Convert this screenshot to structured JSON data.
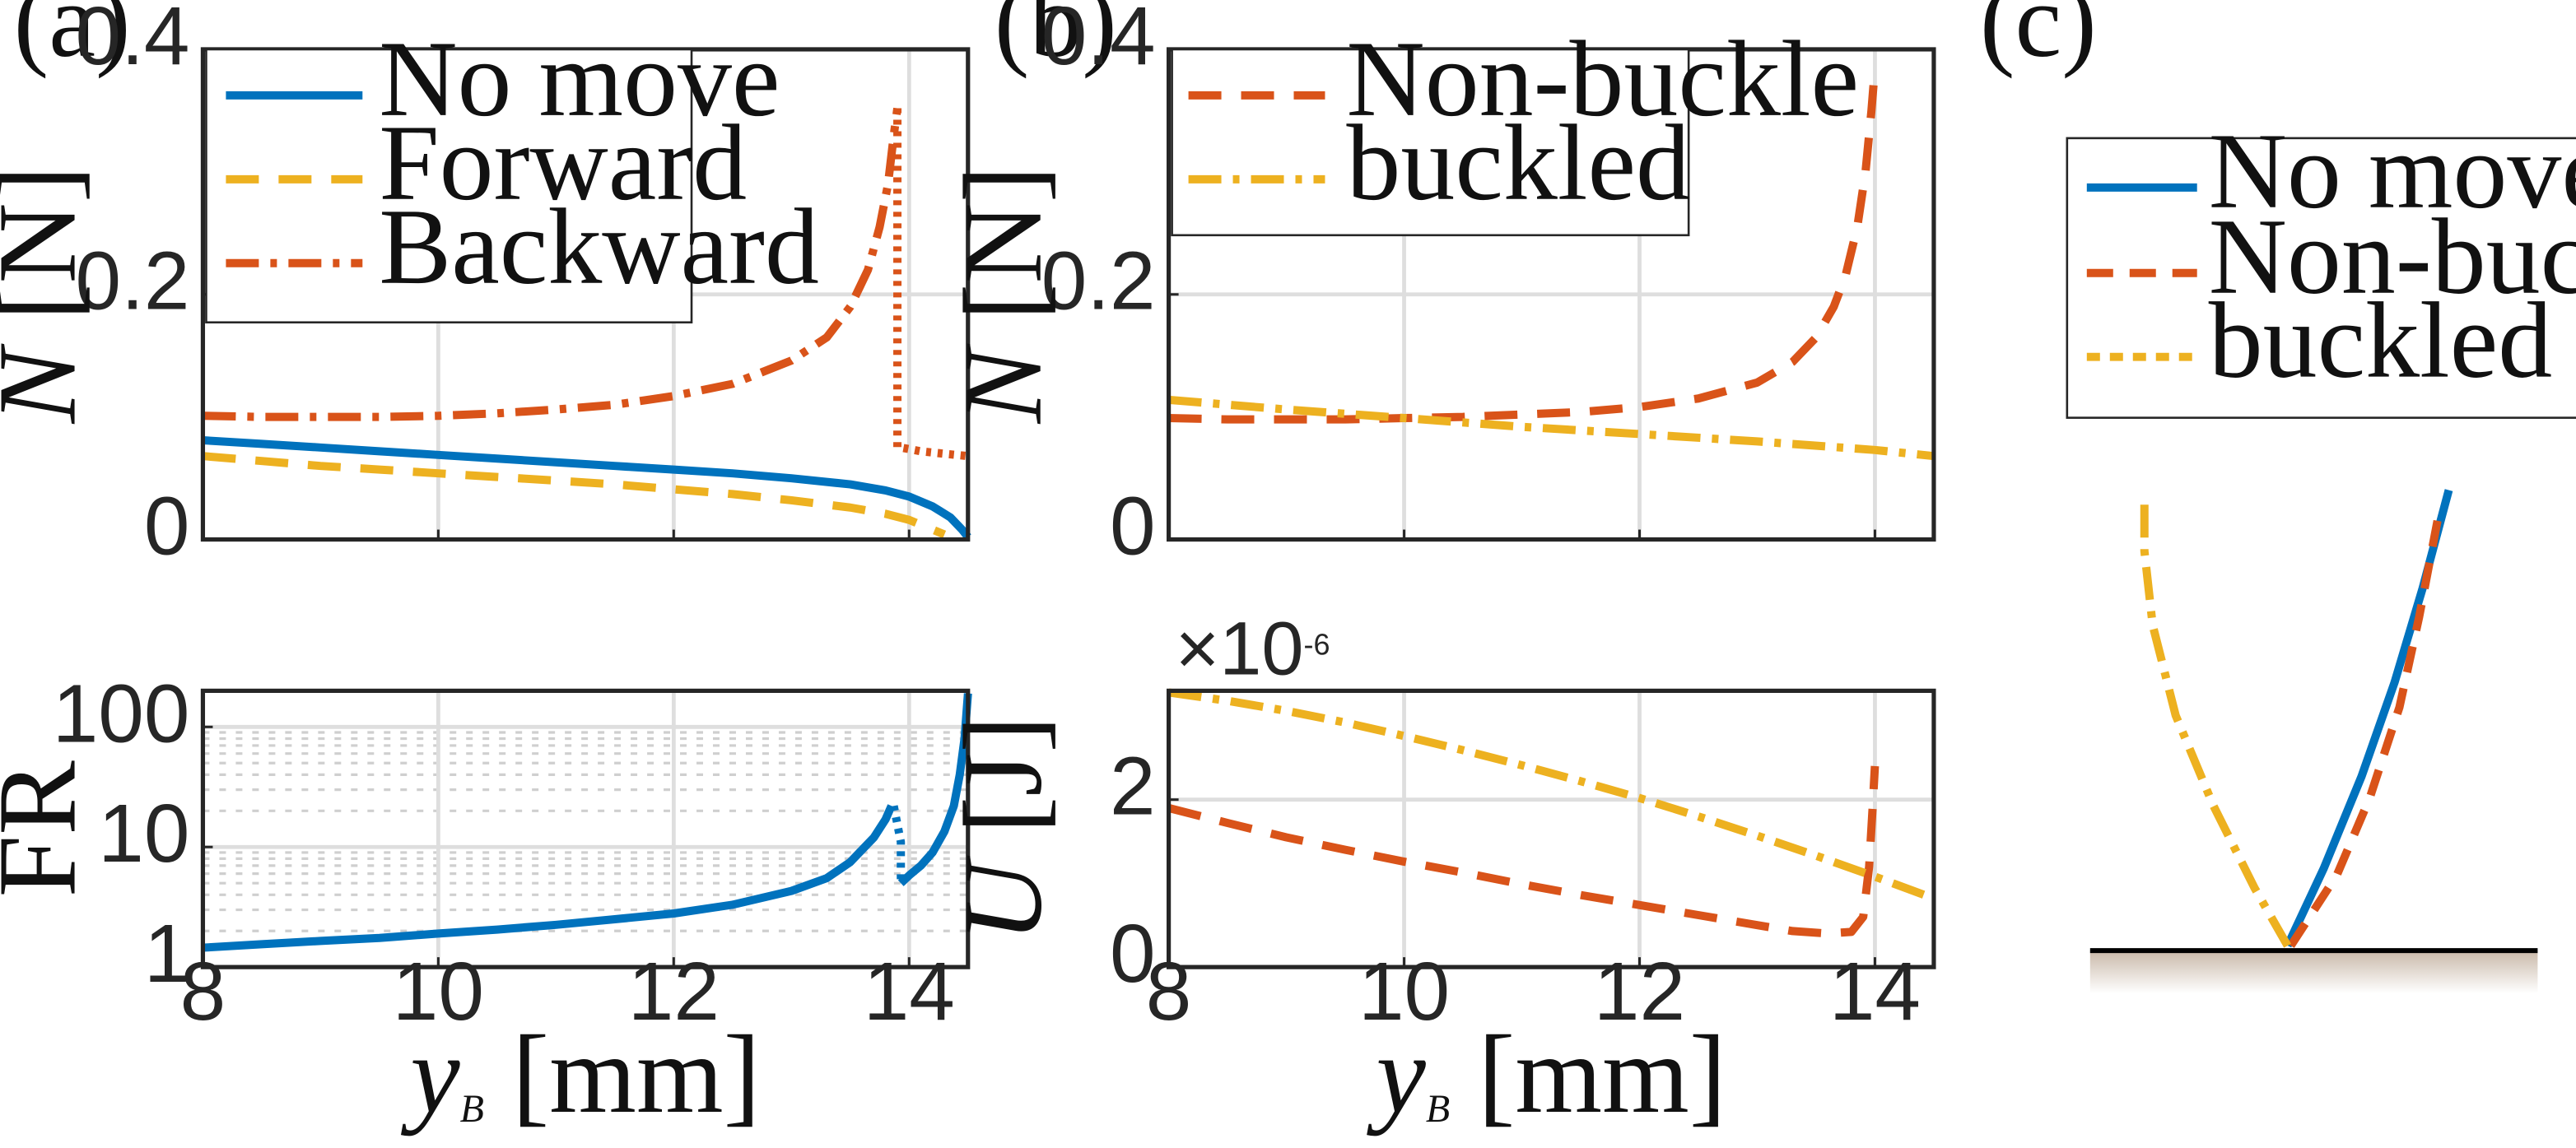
{
  "panel_labels": {
    "a": "(a)",
    "b": "(b)",
    "c": "(c)"
  },
  "colors": {
    "blue": "#0072bd",
    "orange": "#d95319",
    "yellow": "#edb120",
    "ground": "#c9b9a9",
    "axis": "#262626"
  },
  "chart_data": [
    {
      "id": "a_top",
      "type": "line",
      "xlabel": "",
      "ylabel": {
        "var": "N",
        "unit": "[N]"
      },
      "xlim": [
        8,
        14.5
      ],
      "ylim": [
        0,
        0.4
      ],
      "xticks": [
        8,
        10,
        12,
        14
      ],
      "yticks": [
        0,
        0.2,
        0.4
      ],
      "ytick_labels": [
        "0",
        "0.2",
        "0.4"
      ],
      "grid": true,
      "legend_position": "top-left",
      "series": [
        {
          "name": "No move",
          "color": "#0072bd",
          "style": "solid",
          "x": [
            8,
            8.5,
            9,
            9.5,
            10,
            10.5,
            11,
            11.5,
            12,
            12.5,
            13,
            13.5,
            13.8,
            14.0,
            14.2,
            14.35,
            14.45,
            14.5
          ],
          "y": [
            0.081,
            0.078,
            0.075,
            0.072,
            0.069,
            0.066,
            0.063,
            0.06,
            0.057,
            0.054,
            0.05,
            0.045,
            0.04,
            0.035,
            0.027,
            0.018,
            0.008,
            0.002
          ]
        },
        {
          "name": "Forward",
          "color": "#edb120",
          "style": "dashed",
          "x": [
            8,
            8.5,
            9,
            9.5,
            10,
            10.5,
            11,
            11.5,
            12,
            12.5,
            13,
            13.5,
            13.8,
            14.0,
            14.2,
            14.3
          ],
          "y": [
            0.068,
            0.064,
            0.06,
            0.057,
            0.054,
            0.051,
            0.048,
            0.045,
            0.041,
            0.037,
            0.032,
            0.026,
            0.021,
            0.016,
            0.008,
            0.004
          ]
        },
        {
          "name": "Backward",
          "color": "#d95319",
          "style": "dashdot",
          "x": [
            8,
            8.5,
            9,
            9.5,
            10,
            10.5,
            11,
            11.5,
            12,
            12.5,
            13,
            13.3,
            13.5,
            13.65,
            13.75,
            13.82,
            13.87,
            13.9
          ],
          "y": [
            0.101,
            0.1,
            0.1,
            0.1,
            0.101,
            0.103,
            0.106,
            0.11,
            0.117,
            0.127,
            0.146,
            0.165,
            0.19,
            0.22,
            0.255,
            0.29,
            0.33,
            0.352
          ]
        },
        {
          "name": "",
          "color": "#d95319",
          "style": "dotted",
          "x": [
            13.9,
            13.9,
            13.93,
            13.93,
            14.1,
            14.3,
            14.5
          ],
          "y": [
            0.352,
            0.075,
            0.075,
            0.075,
            0.072,
            0.07,
            0.068
          ]
        }
      ]
    },
    {
      "id": "a_bottom",
      "type": "line",
      "xlabel": {
        "var": "y",
        "sub": "B",
        "unit": "[mm]"
      },
      "ylabel": {
        "var": "FR",
        "unit": ""
      },
      "xlim": [
        8,
        14.5
      ],
      "ylim": [
        1,
        200
      ],
      "yscale": "log",
      "xticks": [
        8,
        10,
        12,
        14
      ],
      "yticks": [
        1,
        10,
        100
      ],
      "ytick_labels": [
        "1",
        "10",
        "100"
      ],
      "grid": true,
      "series": [
        {
          "name": "No move",
          "color": "#0072bd",
          "style": "solid",
          "x": [
            8,
            8.5,
            9,
            9.5,
            10,
            10.5,
            11,
            11.5,
            12,
            12.5,
            13,
            13.3,
            13.5,
            13.7,
            13.8,
            13.85
          ],
          "y": [
            1.45,
            1.55,
            1.65,
            1.75,
            1.9,
            2.05,
            2.25,
            2.5,
            2.8,
            3.3,
            4.3,
            5.5,
            7.5,
            12,
            17,
            22
          ]
        },
        {
          "name": "",
          "color": "#0072bd",
          "style": "dotted",
          "x": [
            13.87,
            13.93,
            13.93
          ],
          "y": [
            22,
            11,
            5
          ]
        },
        {
          "name": "",
          "color": "#0072bd",
          "style": "solid",
          "x": [
            13.93,
            14.0,
            14.1,
            14.2,
            14.3,
            14.38,
            14.43,
            14.47,
            14.5
          ],
          "y": [
            5.0,
            5.8,
            7.0,
            9.0,
            13.5,
            22,
            40,
            80,
            190
          ]
        }
      ]
    },
    {
      "id": "b_top",
      "type": "line",
      "xlabel": "",
      "ylabel": {
        "var": "N",
        "unit": "[N]"
      },
      "xlim": [
        8,
        14.5
      ],
      "ylim": [
        0,
        0.4
      ],
      "xticks": [
        8,
        10,
        12,
        14
      ],
      "yticks": [
        0,
        0.2,
        0.4
      ],
      "ytick_labels": [
        "0",
        "0.2",
        "0.4"
      ],
      "grid": true,
      "legend_position": "top-left",
      "series": [
        {
          "name": "Non-buckle",
          "color": "#d95319",
          "style": "dashed",
          "x": [
            8,
            8.5,
            9,
            9.5,
            10,
            10.5,
            11,
            11.5,
            12,
            12.5,
            13,
            13.3,
            13.5,
            13.65,
            13.75,
            13.85,
            13.92,
            13.97,
            14.0
          ],
          "y": [
            0.099,
            0.098,
            0.098,
            0.098,
            0.099,
            0.1,
            0.102,
            0.104,
            0.108,
            0.115,
            0.128,
            0.145,
            0.165,
            0.19,
            0.215,
            0.255,
            0.3,
            0.35,
            0.385
          ]
        },
        {
          "name": "buckled",
          "color": "#edb120",
          "style": "dashdot",
          "x": [
            8,
            9,
            10,
            11,
            12,
            13,
            14,
            14.5
          ],
          "y": [
            0.114,
            0.106,
            0.099,
            0.092,
            0.086,
            0.08,
            0.073,
            0.068
          ]
        }
      ]
    },
    {
      "id": "b_bottom",
      "type": "line",
      "xlabel": {
        "var": "y",
        "sub": "B",
        "unit": "[mm]"
      },
      "ylabel": {
        "var": "U",
        "unit": "[J]"
      },
      "scale_label": "×10",
      "scale_exponent": "-6",
      "xlim": [
        8,
        14.5
      ],
      "ylim": [
        0,
        3.3
      ],
      "xticks": [
        8,
        10,
        12,
        14
      ],
      "yticks": [
        0,
        2
      ],
      "ytick_labels": [
        "0",
        "2"
      ],
      "grid": true,
      "series": [
        {
          "name": "Non-buckle",
          "color": "#d95319",
          "style": "dashed",
          "x": [
            8,
            8.5,
            9,
            9.5,
            10,
            10.5,
            11,
            11.5,
            12,
            12.5,
            13,
            13.3,
            13.6,
            13.8,
            13.9,
            13.95,
            13.98,
            14.0
          ],
          "y": [
            1.9,
            1.72,
            1.55,
            1.4,
            1.26,
            1.13,
            0.99,
            0.86,
            0.74,
            0.62,
            0.5,
            0.43,
            0.4,
            0.42,
            0.6,
            1.2,
            1.9,
            2.4
          ]
        },
        {
          "name": "buckled",
          "color": "#edb120",
          "style": "dashdot",
          "x": [
            8,
            8.5,
            9,
            9.5,
            10,
            10.5,
            11,
            11.5,
            12,
            12.5,
            13,
            13.5,
            14,
            14.5
          ],
          "y": [
            3.28,
            3.18,
            3.06,
            2.92,
            2.76,
            2.59,
            2.41,
            2.22,
            2.02,
            1.8,
            1.57,
            1.33,
            1.08,
            0.82
          ]
        }
      ]
    }
  ],
  "legend_c": {
    "items": [
      {
        "name": "No move",
        "color": "#0072bd",
        "style": "solid"
      },
      {
        "name": "Non-buckle",
        "color": "#d95319",
        "style": "dashed"
      },
      {
        "name": "buckled",
        "color": "#edb120",
        "style": "dotted"
      }
    ]
  },
  "shape_c": {
    "series": [
      {
        "name": "No move",
        "color": "#0072bd",
        "style": "solid",
        "points": [
          [
            1390,
            575
          ],
          [
            1412,
            528
          ],
          [
            1435,
            472
          ],
          [
            1455,
            415
          ],
          [
            1472,
            358
          ],
          [
            1488,
            298
          ]
        ]
      },
      {
        "name": "Non-buckle",
        "color": "#d95319",
        "style": "dashed",
        "points": [
          [
            1392,
            575
          ],
          [
            1420,
            532
          ],
          [
            1440,
            485
          ],
          [
            1458,
            430
          ],
          [
            1470,
            375
          ],
          [
            1482,
            312
          ]
        ]
      },
      {
        "name": "buckled",
        "color": "#edb120",
        "style": "dashdot",
        "points": [
          [
            1390,
            575
          ],
          [
            1370,
            540
          ],
          [
            1345,
            490
          ],
          [
            1322,
            435
          ],
          [
            1308,
            380
          ],
          [
            1303,
            335
          ],
          [
            1303,
            300
          ]
        ]
      }
    ]
  }
}
